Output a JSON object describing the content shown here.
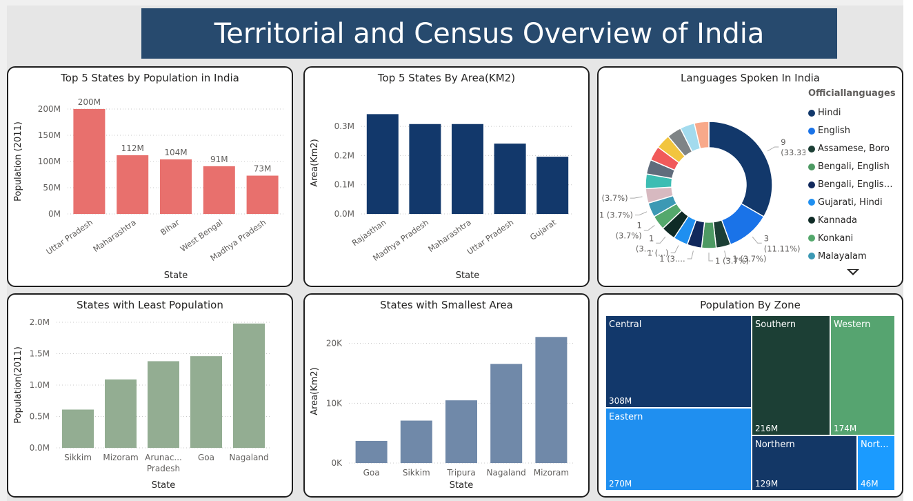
{
  "dashboard_title": "Territorial and Census Overview of India",
  "chart_data": [
    {
      "id": "pop_top5",
      "type": "bar",
      "title": "Top 5 States by Population in India",
      "xlabel": "State",
      "ylabel": "Population (2011)",
      "categories": [
        "Uttar Pradesh",
        "Maharashtra",
        "Bihar",
        "West Bengal",
        "Madhya Pradesh"
      ],
      "values": [
        200,
        112,
        104,
        91,
        73
      ],
      "data_labels": [
        "200M",
        "112M",
        "104M",
        "91M",
        "73M"
      ],
      "unit": "M",
      "ylim": [
        0,
        200
      ],
      "yticks": [
        0,
        50,
        100,
        150,
        200
      ],
      "ytick_labels": [
        "0M",
        "50M",
        "100M",
        "150M",
        "200M"
      ],
      "color": "#e8706d",
      "rotate_labels": true,
      "grid": true
    },
    {
      "id": "area_top5",
      "type": "bar",
      "title": "Top 5 States By Area(KM2)",
      "xlabel": "State",
      "ylabel": "Area(Km2)",
      "categories": [
        "Rajasthan",
        "Madhya Pradesh",
        "Maharashtra",
        "Uttar Pradesh",
        "Gujarat"
      ],
      "values": [
        0.342,
        0.308,
        0.308,
        0.241,
        0.196
      ],
      "unit": "M",
      "ylim": [
        0,
        0.35
      ],
      "yticks": [
        0,
        0.1,
        0.2,
        0.3
      ],
      "ytick_labels": [
        "0.0M",
        "0.1M",
        "0.2M",
        "0.3M"
      ],
      "color": "#12386b",
      "rotate_labels": true,
      "grid": true
    },
    {
      "id": "languages",
      "type": "pie",
      "title": "Languages Spoken In India",
      "legend_title": "Officiallanguages",
      "total": 27,
      "slices": [
        {
          "label": "Hindi",
          "value": 9,
          "color": "#12386b"
        },
        {
          "label": "English",
          "value": 3,
          "color": "#1a73e8"
        },
        {
          "label": "Assamese, Boro",
          "value": 1,
          "color": "#1c3f35"
        },
        {
          "label": "Bengali, English",
          "value": 1,
          "color": "#4d9a63"
        },
        {
          "label": "Bengali, English...",
          "value": 1,
          "color": "#11295c"
        },
        {
          "label": "Gujarati, Hindi",
          "value": 1,
          "color": "#1f8ff0"
        },
        {
          "label": "Kannada",
          "value": 1,
          "color": "#0f2b26"
        },
        {
          "label": "Konkani",
          "value": 1,
          "color": "#54a86c"
        },
        {
          "label": "Malayalam",
          "value": 1,
          "color": "#3c99b4"
        },
        {
          "label": "",
          "value": 1,
          "color": "#d7b9c0"
        },
        {
          "label": "",
          "value": 1,
          "color": "#3dbdb3"
        },
        {
          "label": "",
          "value": 1,
          "color": "#606c7c"
        },
        {
          "label": "",
          "value": 1,
          "color": "#f15a5a"
        },
        {
          "label": "",
          "value": 1,
          "color": "#f2c53f"
        },
        {
          "label": "",
          "value": 1,
          "color": "#7f8486"
        },
        {
          "label": "",
          "value": 1,
          "color": "#a3dbee"
        },
        {
          "label": "",
          "value": 1,
          "color": "#f8a98a"
        }
      ],
      "data_labels": [
        {
          "lines": [
            "9",
            "(33.33%)"
          ]
        },
        {
          "lines": [
            "3",
            "(11.11%)"
          ]
        },
        {
          "lines": [
            "1 (3.7%)"
          ]
        },
        {
          "lines": [
            "1 (3.7%)"
          ]
        },
        {
          "lines": [
            "1 (3...."
          ]
        },
        {
          "lines": [
            "1 (...)"
          ]
        },
        {
          "lines": [
            "1",
            "(3...."
          ]
        },
        {
          "lines": [
            "1",
            "(3.7%)"
          ]
        },
        {
          "lines": [
            "1 (3.7%)"
          ]
        },
        {
          "lines": [
            "1 (3.7%)"
          ]
        }
      ],
      "legend_visible": [
        "Hindi",
        "English",
        "Assamese, Boro",
        "Bengali, English",
        "Bengali, English...",
        "Gujarati, Hindi",
        "Kannada",
        "Konkani",
        "Malayalam"
      ],
      "legend_placement": "right"
    },
    {
      "id": "pop_least",
      "type": "bar",
      "title": "States with Least Population",
      "xlabel": "State",
      "ylabel": "Population(2011)",
      "categories": [
        "Sikkim",
        "Mizoram",
        "Arunac... Pradesh",
        "Goa",
        "Nagaland"
      ],
      "category_lines": [
        [
          "Sikkim"
        ],
        [
          "Mizoram"
        ],
        [
          "Arunac...",
          "Pradesh"
        ],
        [
          "Goa"
        ],
        [
          "Nagaland"
        ]
      ],
      "values": [
        0.61,
        1.09,
        1.38,
        1.46,
        1.98
      ],
      "unit": "M",
      "ylim": [
        0,
        2.0
      ],
      "yticks": [
        0,
        0.5,
        1.0,
        1.5,
        2.0
      ],
      "ytick_labels": [
        "0.0M",
        "0.5M",
        "1.0M",
        "1.5M",
        "2.0M"
      ],
      "color": "#93ad92",
      "rotate_labels": false,
      "grid": true
    },
    {
      "id": "area_smallest",
      "type": "bar",
      "title": "States with Smallest Area",
      "xlabel": "State",
      "ylabel": "Area(Km2)",
      "categories": [
        "Goa",
        "Sikkim",
        "Tripura",
        "Nagaland",
        "Mizoram"
      ],
      "values": [
        3702,
        7096,
        10486,
        16579,
        21081
      ],
      "unit": "K",
      "ylim": [
        0,
        24000
      ],
      "yticks": [
        0,
        10000,
        20000
      ],
      "ytick_labels": [
        "0K",
        "10K",
        "20K"
      ],
      "color": "#7089a9",
      "rotate_labels": false,
      "grid": true
    },
    {
      "id": "zone_pop",
      "type": "treemap",
      "title": "Population By Zone",
      "cells": [
        {
          "label": "Central",
          "value_label": "308M",
          "value": 308,
          "color": "#12386b"
        },
        {
          "label": "Southern",
          "value_label": "216M",
          "value": 216,
          "color": "#1c3f35"
        },
        {
          "label": "Western",
          "value_label": "174M",
          "value": 174,
          "color": "#56a470"
        },
        {
          "label": "Eastern",
          "value_label": "270M",
          "value": 270,
          "color": "#1f8ff0"
        },
        {
          "label": "Northern",
          "value_label": "129M",
          "value": 129,
          "color": "#133766"
        },
        {
          "label": "Nort...",
          "value_label": "46M",
          "value": 46,
          "color": "#1b9bff"
        }
      ]
    }
  ]
}
